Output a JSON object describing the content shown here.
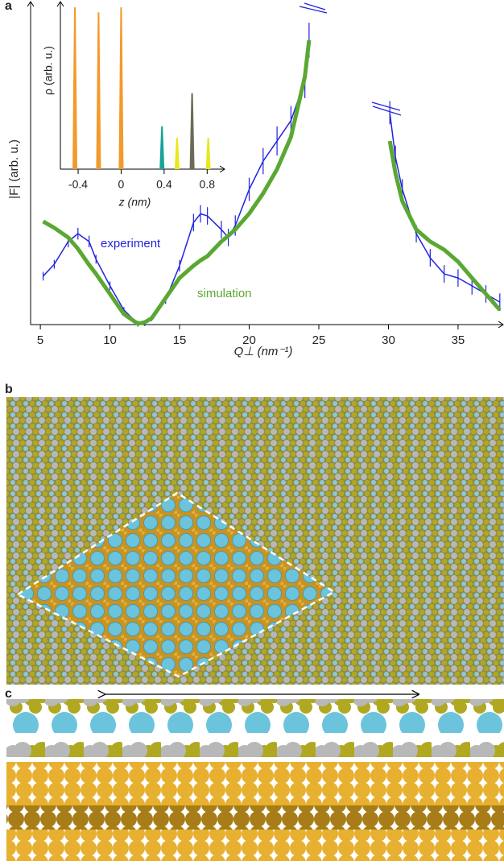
{
  "panel_labels": [
    "a",
    "b",
    "c"
  ],
  "chart_data": [
    {
      "type": "line",
      "y_label": "|F| (arb. u.)",
      "x_label": "Q⊥ (nm⁻¹)",
      "xlim": [
        4.3,
        38.3
      ],
      "ylim": [
        -10,
        100
      ],
      "xticks": [
        5,
        10,
        15,
        20,
        25,
        30,
        35
      ],
      "annotations": [
        "experiment",
        "simulation"
      ],
      "x": [
        5.2,
        6,
        7,
        7.7,
        8.5,
        9,
        10,
        11,
        12,
        12.5,
        13,
        14,
        15,
        16,
        16.5,
        17,
        18,
        18.5,
        19,
        20,
        21,
        22,
        23,
        24,
        24.3,
        27,
        30.1,
        30.5,
        31,
        32,
        33,
        34,
        35,
        36,
        37,
        38
      ],
      "series": [
        {
          "name": "experiment",
          "color": "#2323e0",
          "width": 1.5,
          "values": [
            6.6,
            10.7,
            18.5,
            21.2,
            18.5,
            12.4,
            3.3,
            -5,
            -9.7,
            -9.5,
            -7.8,
            -1.4,
            10.2,
            25,
            28,
            27.3,
            22.6,
            19.9,
            24,
            36.4,
            46.1,
            53,
            60,
            73.7,
            87.6,
            null,
            62.7,
            47.5,
            36.4,
            21.2,
            12.9,
            7.4,
            6,
            3.3,
            0.5,
            -2.3
          ],
          "errors": [
            1.5,
            1.5,
            2,
            2,
            2,
            1.5,
            1.5,
            1,
            1,
            1,
            1,
            1.5,
            2,
            3,
            3,
            3,
            3,
            3,
            3.5,
            4,
            4.5,
            5,
            5,
            6,
            6,
            null,
            4,
            4,
            3.5,
            3,
            3,
            3,
            3,
            3,
            3,
            3
          ]
        },
        {
          "name": "simulation",
          "color": "#5aa832",
          "width": 5,
          "values": [
            25.4,
            23.2,
            19.9,
            16,
            10.5,
            7.4,
            0.5,
            -6.4,
            -9.7,
            -9.2,
            -7.8,
            -0.9,
            6,
            10.2,
            12,
            13.5,
            18.5,
            20.5,
            22.6,
            28.1,
            35,
            43.3,
            54.4,
            75.1,
            87.6,
            null,
            53,
            42,
            32.3,
            22.6,
            18.5,
            15.7,
            11.6,
            6,
            0.5,
            -5
          ]
        }
      ]
    },
    {
      "type": "peaks",
      "y_label": "ρ (arb. u.)",
      "x_label": "z (nm)",
      "xlim": [
        -0.565,
        0.97
      ],
      "ylim": [
        0,
        1
      ],
      "xticks": [
        -0.4,
        0,
        0.4,
        0.8
      ],
      "x": [
        -0.43,
        -0.21,
        0,
        0.38,
        0.52,
        0.66,
        0.81
      ],
      "values": [
        0.98,
        0.95,
        0.98,
        0.26,
        0.19,
        0.46,
        0.19
      ],
      "colors": [
        "#f39a2c",
        "#f39a2c",
        "#f39a2c",
        "#1aa39a",
        "#e8e81a",
        "#6b6b5a",
        "#e8e81a"
      ]
    }
  ]
}
